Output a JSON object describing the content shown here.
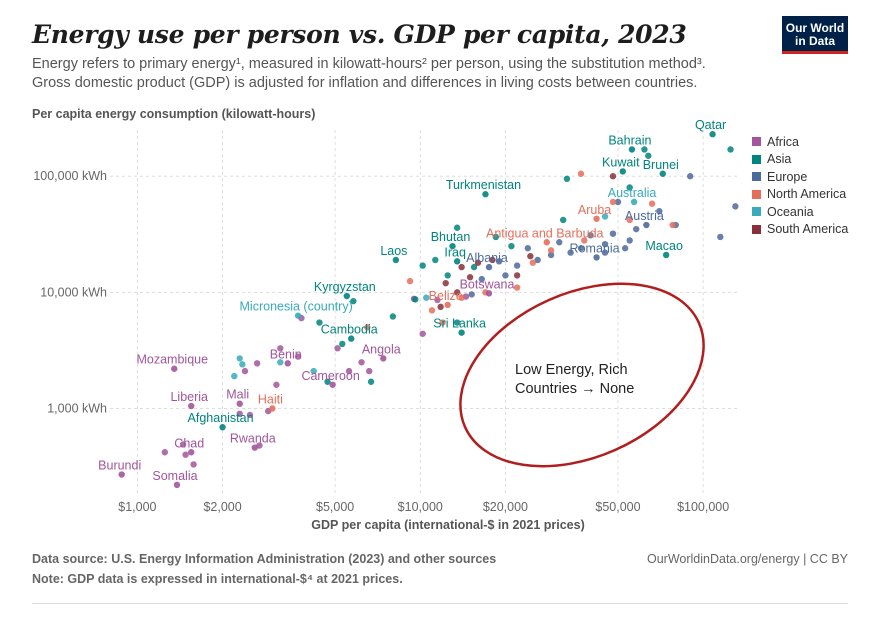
{
  "header": {
    "title": "Energy use per person vs. GDP per capita, 2023",
    "subtitle_line1": "Energy refers to primary energy¹, measured in kilowatt-hours² per person, using the substitution method³.",
    "subtitle_line2": "Gross domestic product (GDP) is adjusted for inflation and differences in living costs between countries.",
    "logo_line1": "Our World",
    "logo_line2": "in Data"
  },
  "footer": {
    "source": "Data source: U.S. Energy Information Administration (2023) and other sources",
    "note": "Note: GDP data is expressed in international-$⁴ at 2021 prices.",
    "url": "OurWorldinData.org/energy | CC BY"
  },
  "chart_data": {
    "type": "scatter",
    "title": "Energy use per person vs. GDP per capita, 2023",
    "xlabel": "GDP per capita (international-$ in 2021 prices)",
    "ylabel": "Per capita energy consumption (kilowatt-hours)",
    "xscale": "log",
    "yscale": "log",
    "xlim": [
      800,
      135000
    ],
    "ylim": [
      180,
      250000
    ],
    "xticks": [
      {
        "v": 1000,
        "l": "$1,000"
      },
      {
        "v": 2000,
        "l": "$2,000"
      },
      {
        "v": 5000,
        "l": "$5,000"
      },
      {
        "v": 10000,
        "l": "$10,000"
      },
      {
        "v": 20000,
        "l": "$20,000"
      },
      {
        "v": 50000,
        "l": "$50,000"
      },
      {
        "v": 100000,
        "l": "$100,000"
      }
    ],
    "yticks": [
      {
        "v": 1000,
        "l": "1,000 kWh"
      },
      {
        "v": 10000,
        "l": "10,000 kWh"
      },
      {
        "v": 100000,
        "l": "100,000 kWh"
      }
    ],
    "legend_position": "right",
    "series": [
      {
        "name": "Africa",
        "color": "#a2559c"
      },
      {
        "name": "Asia",
        "color": "#00847e"
      },
      {
        "name": "Europe",
        "color": "#4c6a9c"
      },
      {
        "name": "North America",
        "color": "#e56e5a"
      },
      {
        "name": "Oceania",
        "color": "#38aaba"
      },
      {
        "name": "South America",
        "color": "#883039"
      }
    ],
    "labeled_points": [
      {
        "name": "Qatar",
        "region": "Asia",
        "x": 108000,
        "y": 230000
      },
      {
        "name": "Bahrain",
        "region": "Asia",
        "x": 56000,
        "y": 170000
      },
      {
        "name": "Kuwait",
        "region": "Asia",
        "x": 52000,
        "y": 110000
      },
      {
        "name": "Brunei",
        "region": "Asia",
        "x": 72000,
        "y": 105000
      },
      {
        "name": "Turkmenistan",
        "region": "Asia",
        "x": 17000,
        "y": 70000
      },
      {
        "name": "Australia",
        "region": "Oceania",
        "x": 57000,
        "y": 60000
      },
      {
        "name": "Aruba",
        "region": "North America",
        "x": 42000,
        "y": 43000
      },
      {
        "name": "Austria",
        "region": "Europe",
        "x": 63000,
        "y": 38000
      },
      {
        "name": "Antigua and Barbuda",
        "region": "North America",
        "x": 28000,
        "y": 27000
      },
      {
        "name": "Bhutan",
        "region": "Asia",
        "x": 13000,
        "y": 25000
      },
      {
        "name": "Macao",
        "region": "Asia",
        "x": 74000,
        "y": 21000
      },
      {
        "name": "Laos",
        "region": "Asia",
        "x": 8200,
        "y": 19000
      },
      {
        "name": "Iraq",
        "region": "Asia",
        "x": 13500,
        "y": 18500
      },
      {
        "name": "Romania",
        "region": "Europe",
        "x": 42000,
        "y": 20000
      },
      {
        "name": "Albania",
        "region": "Europe",
        "x": 17500,
        "y": 16500
      },
      {
        "name": "Botswana",
        "region": "Africa",
        "x": 17500,
        "y": 9800
      },
      {
        "name": "Kyrgyzstan",
        "region": "Asia",
        "x": 5500,
        "y": 9300
      },
      {
        "name": "Belize",
        "region": "North America",
        "x": 12500,
        "y": 7800
      },
      {
        "name": "Micronesia (country)",
        "region": "Oceania",
        "x": 3700,
        "y": 6300
      },
      {
        "name": "Sri Lanka",
        "region": "Asia",
        "x": 14000,
        "y": 4500
      },
      {
        "name": "Cambodia",
        "region": "Asia",
        "x": 5700,
        "y": 4000
      },
      {
        "name": "Angola",
        "region": "Africa",
        "x": 7400,
        "y": 2700
      },
      {
        "name": "Benin",
        "region": "Africa",
        "x": 3400,
        "y": 2450
      },
      {
        "name": "Mozambique",
        "region": "Africa",
        "x": 1350,
        "y": 2200
      },
      {
        "name": "Cameroon",
        "region": "Africa",
        "x": 4900,
        "y": 1600
      },
      {
        "name": "Mali",
        "region": "Africa",
        "x": 2300,
        "y": 1100
      },
      {
        "name": "Liberia",
        "region": "Africa",
        "x": 1550,
        "y": 1050
      },
      {
        "name": "Haiti",
        "region": "North America",
        "x": 3000,
        "y": 1000
      },
      {
        "name": "Afghanistan",
        "region": "Asia",
        "x": 2000,
        "y": 690
      },
      {
        "name": "Rwanda",
        "region": "Africa",
        "x": 2600,
        "y": 460
      },
      {
        "name": "Chad",
        "region": "Africa",
        "x": 1550,
        "y": 420
      },
      {
        "name": "Burundi",
        "region": "Africa",
        "x": 880,
        "y": 270
      },
      {
        "name": "Somalia",
        "region": "Africa",
        "x": 1380,
        "y": 220
      }
    ],
    "other_points": [
      {
        "region": "Africa",
        "x": 1250,
        "y": 420
      },
      {
        "region": "Africa",
        "x": 1480,
        "y": 400
      },
      {
        "region": "Africa",
        "x": 1450,
        "y": 490
      },
      {
        "region": "Africa",
        "x": 1580,
        "y": 330
      },
      {
        "region": "Africa",
        "x": 2400,
        "y": 2100
      },
      {
        "region": "Africa",
        "x": 2650,
        "y": 2450
      },
      {
        "region": "Africa",
        "x": 3200,
        "y": 3300
      },
      {
        "region": "Africa",
        "x": 3100,
        "y": 1600
      },
      {
        "region": "Africa",
        "x": 2900,
        "y": 950
      },
      {
        "region": "Africa",
        "x": 2500,
        "y": 880
      },
      {
        "region": "Africa",
        "x": 2700,
        "y": 480
      },
      {
        "region": "Africa",
        "x": 3700,
        "y": 2800
      },
      {
        "region": "Africa",
        "x": 5600,
        "y": 2100
      },
      {
        "region": "Africa",
        "x": 6200,
        "y": 2500
      },
      {
        "region": "Africa",
        "x": 5100,
        "y": 3300
      },
      {
        "region": "Africa",
        "x": 6600,
        "y": 2100
      },
      {
        "region": "Africa",
        "x": 9500,
        "y": 8800
      },
      {
        "region": "Africa",
        "x": 10200,
        "y": 4400
      },
      {
        "region": "Africa",
        "x": 14500,
        "y": 9200
      },
      {
        "region": "Africa",
        "x": 11500,
        "y": 8600
      },
      {
        "region": "Africa",
        "x": 3800,
        "y": 6000
      },
      {
        "region": "Africa",
        "x": 2300,
        "y": 900
      },
      {
        "region": "Asia",
        "x": 125000,
        "y": 170000
      },
      {
        "region": "Asia",
        "x": 62000,
        "y": 170000
      },
      {
        "region": "Asia",
        "x": 64000,
        "y": 150000
      },
      {
        "region": "Asia",
        "x": 55000,
        "y": 80000
      },
      {
        "region": "Asia",
        "x": 33000,
        "y": 95000
      },
      {
        "region": "Asia",
        "x": 13500,
        "y": 36000
      },
      {
        "region": "Asia",
        "x": 10200,
        "y": 17000
      },
      {
        "region": "Asia",
        "x": 11300,
        "y": 19000
      },
      {
        "region": "Asia",
        "x": 12500,
        "y": 14000
      },
      {
        "region": "Asia",
        "x": 15500,
        "y": 16500
      },
      {
        "region": "Asia",
        "x": 21000,
        "y": 25000
      },
      {
        "region": "Asia",
        "x": 18500,
        "y": 30000
      },
      {
        "region": "Asia",
        "x": 5800,
        "y": 8400
      },
      {
        "region": "Asia",
        "x": 4400,
        "y": 5500
      },
      {
        "region": "Asia",
        "x": 5300,
        "y": 3600
      },
      {
        "region": "Asia",
        "x": 4700,
        "y": 1700
      },
      {
        "region": "Asia",
        "x": 6700,
        "y": 1700
      },
      {
        "region": "Asia",
        "x": 9600,
        "y": 8700
      },
      {
        "region": "Asia",
        "x": 13500,
        "y": 5500
      },
      {
        "region": "Asia",
        "x": 32000,
        "y": 42000
      },
      {
        "region": "Asia",
        "x": 8000,
        "y": 6200
      },
      {
        "region": "Europe",
        "x": 90000,
        "y": 100000
      },
      {
        "region": "Europe",
        "x": 130000,
        "y": 55000
      },
      {
        "region": "Europe",
        "x": 115000,
        "y": 30000
      },
      {
        "region": "Europe",
        "x": 70000,
        "y": 50000
      },
      {
        "region": "Europe",
        "x": 58000,
        "y": 35000
      },
      {
        "region": "Europe",
        "x": 55000,
        "y": 28000
      },
      {
        "region": "Europe",
        "x": 48000,
        "y": 32000
      },
      {
        "region": "Europe",
        "x": 45000,
        "y": 26000
      },
      {
        "region": "Europe",
        "x": 40000,
        "y": 31000
      },
      {
        "region": "Europe",
        "x": 37000,
        "y": 24000
      },
      {
        "region": "Europe",
        "x": 34000,
        "y": 22000
      },
      {
        "region": "Europe",
        "x": 31000,
        "y": 27000
      },
      {
        "region": "Europe",
        "x": 29000,
        "y": 21000
      },
      {
        "region": "Europe",
        "x": 26000,
        "y": 19000
      },
      {
        "region": "Europe",
        "x": 24000,
        "y": 24000
      },
      {
        "region": "Europe",
        "x": 22000,
        "y": 17000
      },
      {
        "region": "Europe",
        "x": 20000,
        "y": 14000
      },
      {
        "region": "Europe",
        "x": 19000,
        "y": 18500
      },
      {
        "region": "Europe",
        "x": 16500,
        "y": 13000
      },
      {
        "region": "Europe",
        "x": 15200,
        "y": 9600
      },
      {
        "region": "Europe",
        "x": 50000,
        "y": 60000
      },
      {
        "region": "Europe",
        "x": 45000,
        "y": 22000
      },
      {
        "region": "Europe",
        "x": 53000,
        "y": 24000
      },
      {
        "region": "Europe",
        "x": 80000,
        "y": 38000
      },
      {
        "region": "North America",
        "x": 66000,
        "y": 58000
      },
      {
        "region": "North America",
        "x": 48000,
        "y": 60000
      },
      {
        "region": "North America",
        "x": 37000,
        "y": 105000
      },
      {
        "region": "North America",
        "x": 29000,
        "y": 23000
      },
      {
        "region": "North America",
        "x": 25000,
        "y": 18000
      },
      {
        "region": "North America",
        "x": 22000,
        "y": 11000
      },
      {
        "region": "North America",
        "x": 14000,
        "y": 9000
      },
      {
        "region": "North America",
        "x": 11000,
        "y": 7000
      },
      {
        "region": "North America",
        "x": 12000,
        "y": 5500
      },
      {
        "region": "North America",
        "x": 9200,
        "y": 12500
      },
      {
        "region": "North America",
        "x": 6500,
        "y": 5000
      },
      {
        "region": "North America",
        "x": 38000,
        "y": 28000
      },
      {
        "region": "North America",
        "x": 55000,
        "y": 42000
      },
      {
        "region": "North America",
        "x": 78000,
        "y": 38000
      },
      {
        "region": "North America",
        "x": 17000,
        "y": 10000
      },
      {
        "region": "Oceania",
        "x": 2300,
        "y": 2700
      },
      {
        "region": "Oceania",
        "x": 2200,
        "y": 1900
      },
      {
        "region": "Oceania",
        "x": 4200,
        "y": 2100
      },
      {
        "region": "Oceania",
        "x": 10500,
        "y": 9000
      },
      {
        "region": "Oceania",
        "x": 45000,
        "y": 45000
      },
      {
        "region": "Oceania",
        "x": 3200,
        "y": 2500
      },
      {
        "region": "Oceania",
        "x": 2350,
        "y": 2400
      },
      {
        "region": "South America",
        "x": 15000,
        "y": 13500
      },
      {
        "region": "South America",
        "x": 16000,
        "y": 18000
      },
      {
        "region": "South America",
        "x": 18000,
        "y": 19000
      },
      {
        "region": "South America",
        "x": 13500,
        "y": 10000
      },
      {
        "region": "South America",
        "x": 14000,
        "y": 16500
      },
      {
        "region": "South America",
        "x": 22000,
        "y": 14000
      },
      {
        "region": "South America",
        "x": 24500,
        "y": 20500
      },
      {
        "region": "South America",
        "x": 12300,
        "y": 12000
      },
      {
        "region": "South America",
        "x": 11800,
        "y": 7500
      },
      {
        "region": "South America",
        "x": 48000,
        "y": 100000
      }
    ],
    "annotation": {
      "text_line1": "Low Energy, Rich",
      "text_line2": "Countries → None",
      "color": "#b11e1e"
    }
  }
}
